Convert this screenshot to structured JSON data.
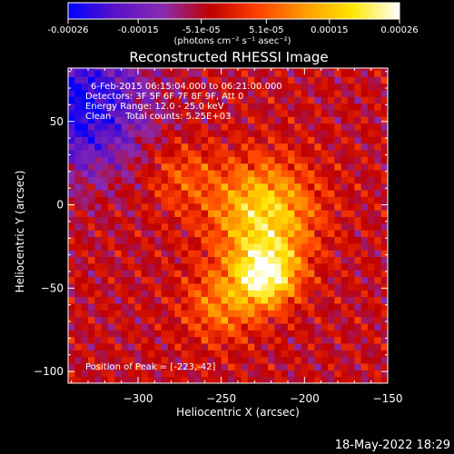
{
  "chart_data": {
    "type": "heatmap",
    "title": "Reconstructed RHESSI Image",
    "xlabel": "Heliocentric X (arcsec)",
    "ylabel": "Heliocentric Y (arcsec)",
    "xlim": [
      -342,
      -150
    ],
    "ylim": [
      -107,
      82
    ],
    "x_ticks": [
      -300,
      -250,
      -200,
      -150
    ],
    "y_ticks": [
      50,
      0,
      -50,
      -100
    ],
    "colorbar": {
      "range": [
        -0.00026,
        0.00026
      ],
      "ticks": [
        "-0.00026",
        "-0.00015",
        "-5.1e-05",
        "5.1e-05",
        "0.00015",
        "0.00026"
      ],
      "label": "(photons cm⁻² s⁻¹ asec⁻²)",
      "colors": [
        "#0000ff",
        "#5a12c8",
        "#8a2ab0",
        "#c00000",
        "#ff4000",
        "#ff9a00",
        "#ffe600",
        "#ffffff"
      ]
    },
    "annotations": {
      "time": "6-Feb-2015 06:15:04.000 to 06:21:00.000",
      "detectors": "Detectors: 3F 5F 6F 7F 8F 9F, Att 0",
      "energy": "Energy Range: 12.0 - 25.0 keV",
      "method": "Clean     Total counts: 5.25E+03",
      "peak": "Position of Peak = [-223,-42]"
    },
    "peak_position": [
      -223,
      -42
    ],
    "sources": [
      {
        "x": -225,
        "y": -5,
        "amplitude": 0.00022,
        "sigma": 22
      },
      {
        "x": -223,
        "y": -42,
        "amplitude": 0.00026,
        "sigma": 13
      },
      {
        "x": -275,
        "y": 18,
        "amplitude": 8e-05,
        "sigma": 15
      },
      {
        "x": -250,
        "y": -60,
        "amplitude": 0.00012,
        "sigma": 16
      }
    ],
    "background_minimum": {
      "x": -335,
      "y": 60,
      "value": -0.00026,
      "sigma": 28
    }
  },
  "footer": {
    "timestamp": "18-May-2022 18:29"
  }
}
